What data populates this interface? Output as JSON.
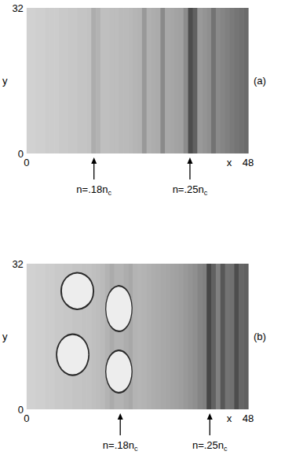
{
  "chart_data": [
    {
      "type": "heatmap",
      "panel": "(a)",
      "xlabel": "x",
      "ylabel": "y",
      "xlim": [
        0,
        48
      ],
      "ylim": [
        0,
        32
      ],
      "xticks": [
        0,
        48
      ],
      "yticks": [
        0,
        32
      ],
      "bins": [
        0,
        1,
        2,
        3,
        4,
        5,
        6,
        7,
        8,
        9,
        10,
        11,
        12,
        13,
        14,
        15,
        16,
        17,
        18,
        19,
        20,
        21,
        22,
        23,
        24,
        25,
        26,
        27,
        28,
        29,
        30,
        31,
        32,
        33,
        34,
        35,
        36,
        37,
        38,
        39,
        40,
        41,
        42,
        43,
        44,
        45,
        46,
        47,
        48
      ],
      "values": [
        0.18,
        0.18,
        0.19,
        0.19,
        0.2,
        0.2,
        0.2,
        0.21,
        0.21,
        0.22,
        0.22,
        0.23,
        0.23,
        0.24,
        0.32,
        0.3,
        0.25,
        0.25,
        0.26,
        0.26,
        0.27,
        0.27,
        0.28,
        0.29,
        0.3,
        0.4,
        0.31,
        0.32,
        0.33,
        0.46,
        0.34,
        0.35,
        0.36,
        0.37,
        0.45,
        0.7,
        0.62,
        0.4,
        0.42,
        0.44,
        0.55,
        0.46,
        0.48,
        0.5,
        0.52,
        0.54,
        0.56,
        0.58
      ],
      "annotations": [
        {
          "text": "n=.18n",
          "subscript": "c",
          "x": 14.6
        },
        {
          "text": "n=.25n",
          "subscript": "c",
          "x": 35.4
        }
      ]
    },
    {
      "type": "heatmap",
      "panel": "(b)",
      "xlabel": "x",
      "ylabel": "y",
      "xlim": [
        0,
        48
      ],
      "ylim": [
        0,
        32
      ],
      "xticks": [
        0,
        48
      ],
      "yticks": [
        0,
        32
      ],
      "bins": [
        0,
        1,
        2,
        3,
        4,
        5,
        6,
        7,
        8,
        9,
        10,
        11,
        12,
        13,
        14,
        15,
        16,
        17,
        18,
        19,
        20,
        21,
        22,
        23,
        24,
        25,
        26,
        27,
        28,
        29,
        30,
        31,
        32,
        33,
        34,
        35,
        36,
        37,
        38,
        39,
        40,
        41,
        42,
        43,
        44,
        45,
        46,
        47,
        48
      ],
      "values": [
        0.18,
        0.18,
        0.19,
        0.19,
        0.2,
        0.2,
        0.21,
        0.21,
        0.22,
        0.22,
        0.23,
        0.23,
        0.24,
        0.24,
        0.25,
        0.26,
        0.27,
        0.3,
        0.33,
        0.3,
        0.3,
        0.32,
        0.34,
        0.3,
        0.29,
        0.3,
        0.31,
        0.32,
        0.33,
        0.34,
        0.35,
        0.36,
        0.37,
        0.38,
        0.4,
        0.42,
        0.44,
        0.48,
        0.5,
        0.72,
        0.62,
        0.5,
        0.66,
        0.55,
        0.56,
        0.7,
        0.6,
        0.62
      ],
      "cavities": [
        {
          "x": 20,
          "y": 22.3,
          "width": 5.7,
          "height": 10
        },
        {
          "x": 20,
          "y": 8.3,
          "width": 5.7,
          "height": 9.3
        },
        {
          "x": 11,
          "y": 26,
          "width": 7,
          "height": 8
        },
        {
          "x": 10,
          "y": 12,
          "width": 7,
          "height": 9
        }
      ],
      "annotations": [
        {
          "text": "n=.18n",
          "subscript": "c",
          "x": 20.3
        },
        {
          "text": "n=.25n",
          "subscript": "c",
          "x": 39.7
        }
      ]
    }
  ]
}
